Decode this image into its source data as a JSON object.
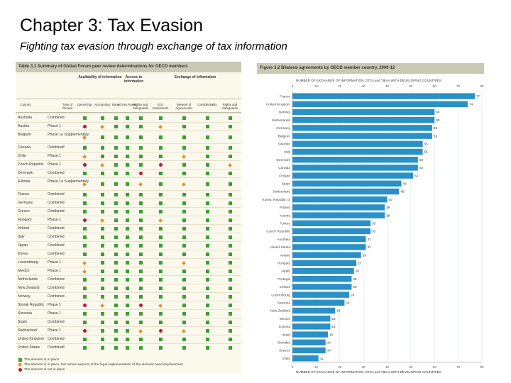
{
  "slide": {
    "title": "Chapter 3: Tax Evasion",
    "subtitle": "Fighting tax evasion through exchange of tax information"
  },
  "colors": {
    "in_place": "#3aa035",
    "improvement": "#e88a2a",
    "not_in_place": "#c8103e",
    "bar": "#2a90c8"
  },
  "table": {
    "caption": "Table 3.1 Summary of Global Forum peer review determinations for OECD members",
    "group_headers": [
      "Availability of information",
      "Access to information",
      "Exchange of information"
    ],
    "columns": [
      "Country",
      "Type of Review",
      "Ownership",
      "Accounting",
      "Bank",
      "Access Power",
      "Rights and Safeguards",
      "EOI Instruments",
      "Network of Agreements",
      "Confidentiality",
      "Rights and Safeguards"
    ],
    "rows": [
      {
        "country": "Australia",
        "review": "Combined",
        "marks": [
          "g",
          "g",
          "g",
          "g",
          "g",
          "g",
          "g",
          "g",
          "g"
        ]
      },
      {
        "country": "Austria",
        "review": "Phase 1",
        "marks": [
          "r",
          "o",
          "g",
          "g",
          "g",
          "o",
          "g",
          "g",
          "g"
        ]
      },
      {
        "country": "Belgium",
        "review": "Phase 1a Supplementary",
        "marks": [
          "o",
          "g",
          "g",
          "g",
          "g",
          "g",
          "g",
          "g",
          "g"
        ]
      },
      {
        "country": "Canada",
        "review": "Combined",
        "marks": [
          "g",
          "g",
          "g",
          "g",
          "g",
          "g",
          "g",
          "g",
          "g"
        ]
      },
      {
        "country": "Chile",
        "review": "Phase 1",
        "marks": [
          "o",
          "g",
          "g",
          "g",
          "g",
          "g",
          "o",
          "g",
          "g"
        ]
      },
      {
        "country": "Czech Republic",
        "review": "Phase 1",
        "marks": [
          "r",
          "o",
          "g",
          "g",
          "g",
          "r",
          "g",
          "g",
          "o"
        ]
      },
      {
        "country": "Denmark",
        "review": "Combined",
        "marks": [
          "g",
          "g",
          "g",
          "g",
          "r",
          "g",
          "g",
          "g",
          "g"
        ]
      },
      {
        "country": "Estonia",
        "review": "Phase 1a Supplementary",
        "marks": [
          "o",
          "g",
          "g",
          "g",
          "o",
          "g",
          "o",
          "g",
          "g"
        ]
      },
      {
        "country": "France",
        "review": "Combined",
        "marks": [
          "g",
          "g",
          "g",
          "g",
          "g",
          "g",
          "g",
          "g",
          "g"
        ]
      },
      {
        "country": "Germany",
        "review": "Combined",
        "marks": [
          "g",
          "g",
          "g",
          "g",
          "g",
          "g",
          "g",
          "g",
          "g"
        ]
      },
      {
        "country": "Greece",
        "review": "Combined",
        "marks": [
          "g",
          "g",
          "g",
          "g",
          "g",
          "g",
          "g",
          "g",
          "g"
        ]
      },
      {
        "country": "Hungary",
        "review": "Phase 1",
        "marks": [
          "r",
          "o",
          "g",
          "g",
          "g",
          "o",
          "g",
          "g",
          "g"
        ]
      },
      {
        "country": "Ireland",
        "review": "Combined",
        "marks": [
          "g",
          "g",
          "g",
          "g",
          "g",
          "g",
          "g",
          "g",
          "g"
        ]
      },
      {
        "country": "Italy",
        "review": "Combined",
        "marks": [
          "g",
          "g",
          "g",
          "g",
          "g",
          "g",
          "g",
          "g",
          "g"
        ]
      },
      {
        "country": "Japan",
        "review": "Combined",
        "marks": [
          "g",
          "g",
          "g",
          "g",
          "g",
          "g",
          "g",
          "g",
          "g"
        ]
      },
      {
        "country": "Korea",
        "review": "Combined",
        "marks": [
          "g",
          "g",
          "g",
          "g",
          "g",
          "g",
          "g",
          "g",
          "g"
        ]
      },
      {
        "country": "Luxembourg",
        "review": "Phase 1",
        "marks": [
          "o",
          "g",
          "g",
          "g",
          "g",
          "g",
          "o",
          "g",
          "g"
        ]
      },
      {
        "country": "Mexico",
        "review": "Phase 1",
        "marks": [
          "o",
          "g",
          "g",
          "g",
          "g",
          "g",
          "g",
          "g",
          "g"
        ]
      },
      {
        "country": "Netherlands",
        "review": "Combined",
        "marks": [
          "g",
          "g",
          "g",
          "g",
          "g",
          "g",
          "g",
          "g",
          "g"
        ]
      },
      {
        "country": "New Zealand",
        "review": "Combined",
        "marks": [
          "g",
          "g",
          "g",
          "g",
          "g",
          "g",
          "g",
          "g",
          "g"
        ]
      },
      {
        "country": "Norway",
        "review": "Combined",
        "marks": [
          "g",
          "g",
          "g",
          "g",
          "g",
          "g",
          "g",
          "g",
          "g"
        ]
      },
      {
        "country": "Slovak Republic",
        "review": "Phase 1",
        "marks": [
          "r",
          "o",
          "g",
          "g",
          "r",
          "o",
          "g",
          "g",
          "g"
        ]
      },
      {
        "country": "Slovenia",
        "review": "Phase 1",
        "marks": [
          "g",
          "g",
          "g",
          "g",
          "g",
          "g",
          "g",
          "g",
          "g"
        ]
      },
      {
        "country": "Spain",
        "review": "Combined",
        "marks": [
          "g",
          "g",
          "g",
          "g",
          "g",
          "g",
          "g",
          "g",
          "g"
        ]
      },
      {
        "country": "Switzerland",
        "review": "Phase 1",
        "marks": [
          "r",
          "g",
          "g",
          "g",
          "o",
          "r",
          "o",
          "g",
          "g"
        ]
      },
      {
        "country": "United Kingdom",
        "review": "Combined",
        "marks": [
          "g",
          "g",
          "g",
          "g",
          "g",
          "g",
          "g",
          "g",
          "g"
        ]
      },
      {
        "country": "United States",
        "review": "Combined",
        "marks": [
          "g",
          "g",
          "g",
          "g",
          "g",
          "g",
          "g",
          "g",
          "g"
        ]
      }
    ],
    "legend": [
      {
        "key": "g",
        "label": "The element is in place"
      },
      {
        "key": "o",
        "label": "The element is in place, but certain aspects of the legal implementation of the element need improvement"
      },
      {
        "key": "r",
        "label": "The element is not in place"
      }
    ]
  },
  "chart_data": {
    "type": "bar",
    "orientation": "horizontal",
    "title": "Figure 3.2 Bilateral agreements by OECD member country, 2000-12",
    "subtitle": "NUMBER OF EXCHANGE OF INFORMATION, DTCs and TIEAs WITH DEVELOPING COUNTRIES",
    "xlabel": "NUMBER OF EXCHANGE OF INFORMATION, DTCs and TIEAs WITH DEVELOPING COUNTRIES",
    "xlim": [
      0,
      80
    ],
    "ticks": [
      0,
      10,
      20,
      30,
      40,
      50,
      60,
      70,
      80
    ],
    "categories": [
      "France",
      "United Kingdom",
      "Norway",
      "Netherlands",
      "Germany",
      "Belgium",
      "Sweden",
      "Italy",
      "Denmark",
      "Canada",
      "Finland",
      "Spain",
      "Switzerland",
      "Korea, Republic of",
      "Poland",
      "Austria",
      "Turkey",
      "Czech Republic",
      "Australia",
      "United States",
      "Ireland",
      "Hungary",
      "Japan",
      "Portugal",
      "Iceland",
      "Luxembourg",
      "Slovenia",
      "New Zealand",
      "Mexico",
      "Estonia",
      "Israel",
      "Slovakia",
      "Greece",
      "Chile"
    ],
    "values": [
      77,
      74,
      60,
      60,
      59,
      59,
      55,
      55,
      53,
      53,
      51,
      46,
      45,
      40,
      39,
      39,
      33,
      33,
      31,
      31,
      29,
      27,
      26,
      25,
      25,
      24,
      22,
      18,
      16,
      16,
      15,
      14,
      14,
      11
    ]
  }
}
